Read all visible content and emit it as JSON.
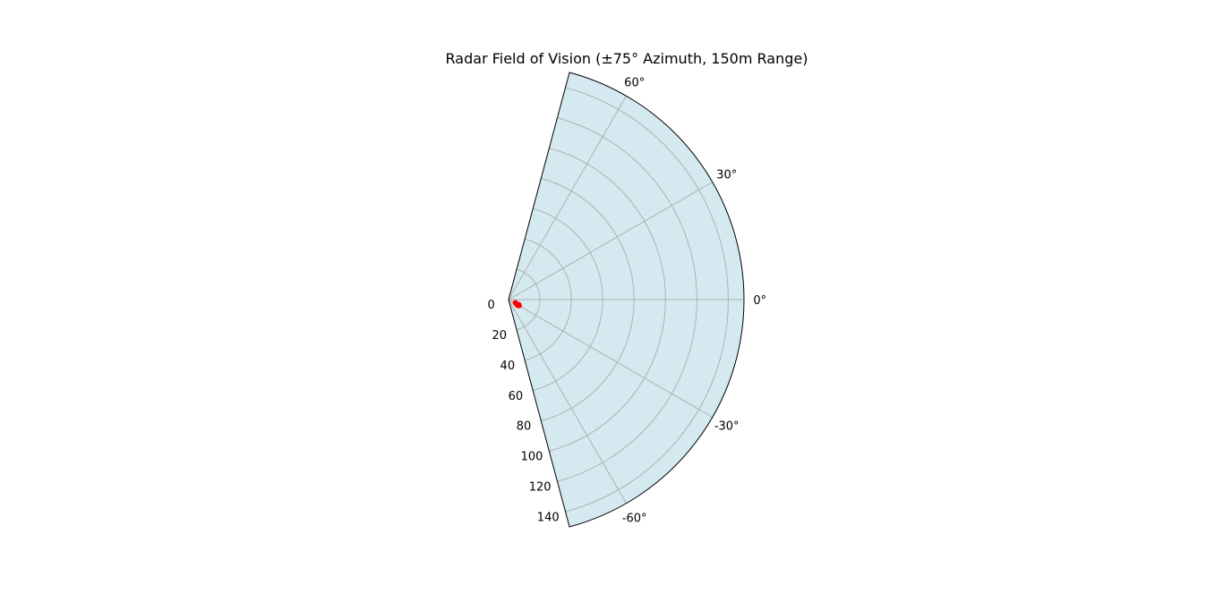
{
  "chart_data": {
    "type": "scatter",
    "projection": "polar",
    "title": "Radar Field of Vision (±75° Azimuth, 150m Range)",
    "theta_range_deg": [
      -75,
      75
    ],
    "r_range": [
      0,
      150
    ],
    "angle_ticks": [
      {
        "value": 60,
        "label": "60°"
      },
      {
        "value": 30,
        "label": "30°"
      },
      {
        "value": 0,
        "label": "0°"
      },
      {
        "value": -30,
        "label": "-30°"
      },
      {
        "value": -60,
        "label": "-60°"
      }
    ],
    "radial_ticks": [
      {
        "value": 0,
        "label": "0"
      },
      {
        "value": 20,
        "label": "20"
      },
      {
        "value": 40,
        "label": "40"
      },
      {
        "value": 60,
        "label": "60"
      },
      {
        "value": 80,
        "label": "80"
      },
      {
        "value": 100,
        "label": "100"
      },
      {
        "value": 120,
        "label": "120"
      },
      {
        "value": 140,
        "label": "140"
      }
    ],
    "grid": true,
    "fill_color": "#d4eaf0",
    "grid_color": "#b0b0b0",
    "point_color": "#ff0000",
    "points": [
      {
        "theta": -25,
        "r": 4.8
      },
      {
        "theta": -28,
        "r": 5.6
      },
      {
        "theta": -30,
        "r": 6.2
      },
      {
        "theta": -27,
        "r": 6.6
      },
      {
        "theta": -32,
        "r": 7.0
      },
      {
        "theta": -26,
        "r": 7.3
      },
      {
        "theta": -29,
        "r": 7.8
      }
    ]
  }
}
